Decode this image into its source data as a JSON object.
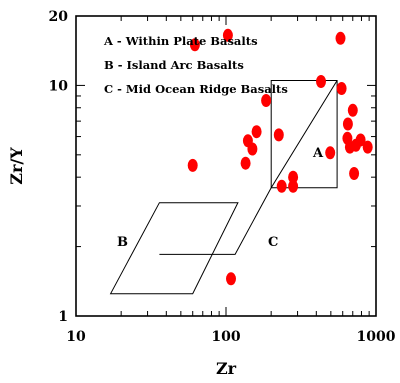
{
  "chart_data": {
    "type": "scatter",
    "x_scale": "log",
    "y_scale": "log",
    "xlim": [
      10,
      1000
    ],
    "ylim": [
      1,
      20
    ],
    "xlabel": "Zr",
    "ylabel": "Zr/Y",
    "x_ticks": [
      10,
      100,
      1000
    ],
    "y_ticks": [
      1,
      10,
      20
    ],
    "legend_entries": [
      "A - Within Plate Basalts",
      "B - Island Arc Basalts",
      "C - Mid Ocean Ridge Basalts"
    ],
    "legend_position": "top-left",
    "grid": false,
    "marker_color": "#ff0000",
    "fields": [
      {
        "label": "A",
        "points": [
          [
            200,
            3.6
          ],
          [
            550,
            3.6
          ],
          [
            550,
            10.5
          ],
          [
            200,
            10.5
          ]
        ],
        "closed": true
      },
      {
        "label": "B",
        "points": [
          [
            17,
            1.25
          ],
          [
            60,
            1.25
          ],
          [
            120,
            3.1
          ],
          [
            36,
            3.1
          ]
        ],
        "closed": true
      },
      {
        "label": "C",
        "points": [
          [
            36,
            1.85
          ],
          [
            115,
            1.85
          ],
          [
            200,
            3.6
          ],
          [
            550,
            10.5
          ]
        ],
        "closed": false
      }
    ],
    "points": [
      {
        "x": 62,
        "y": 15
      },
      {
        "x": 103,
        "y": 16.5
      },
      {
        "x": 580,
        "y": 16
      },
      {
        "x": 430,
        "y": 10.4
      },
      {
        "x": 590,
        "y": 9.7
      },
      {
        "x": 185,
        "y": 8.6
      },
      {
        "x": 700,
        "y": 7.8
      },
      {
        "x": 650,
        "y": 6.8
      },
      {
        "x": 160,
        "y": 6.3
      },
      {
        "x": 225,
        "y": 6.1
      },
      {
        "x": 645,
        "y": 5.9
      },
      {
        "x": 790,
        "y": 5.8
      },
      {
        "x": 140,
        "y": 5.75
      },
      {
        "x": 735,
        "y": 5.5
      },
      {
        "x": 670,
        "y": 5.4
      },
      {
        "x": 150,
        "y": 5.3
      },
      {
        "x": 880,
        "y": 5.4
      },
      {
        "x": 495,
        "y": 5.1
      },
      {
        "x": 60,
        "y": 4.5
      },
      {
        "x": 135,
        "y": 4.6
      },
      {
        "x": 715,
        "y": 4.15
      },
      {
        "x": 280,
        "y": 4.0
      },
      {
        "x": 235,
        "y": 3.65
      },
      {
        "x": 280,
        "y": 3.65
      },
      {
        "x": 108,
        "y": 1.45
      }
    ]
  }
}
